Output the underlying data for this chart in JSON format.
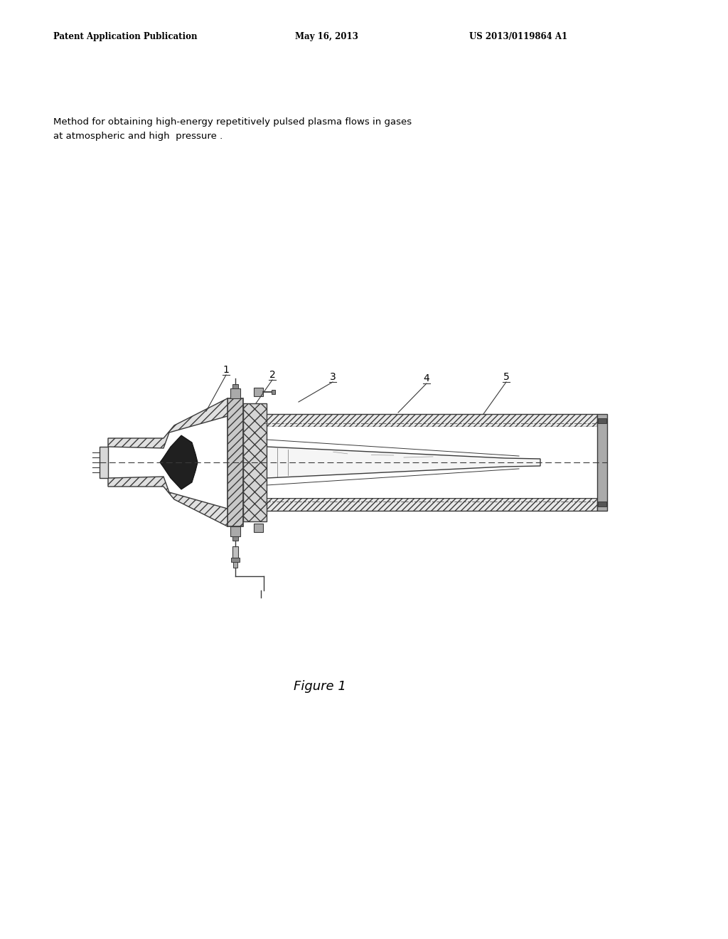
{
  "bg_color": "#ffffff",
  "header_left": "Patent Application Publication",
  "header_mid": "May 16, 2013",
  "header_right": "US 2013/0119864 A1",
  "description_line1": "Method for obtaining high-energy repetitively pulsed plasma flows in gases",
  "description_line2": "at atmospheric and high  pressure .",
  "figure_label": "Figure 1",
  "line_color": "#3a3a3a",
  "label_color": "#000000"
}
